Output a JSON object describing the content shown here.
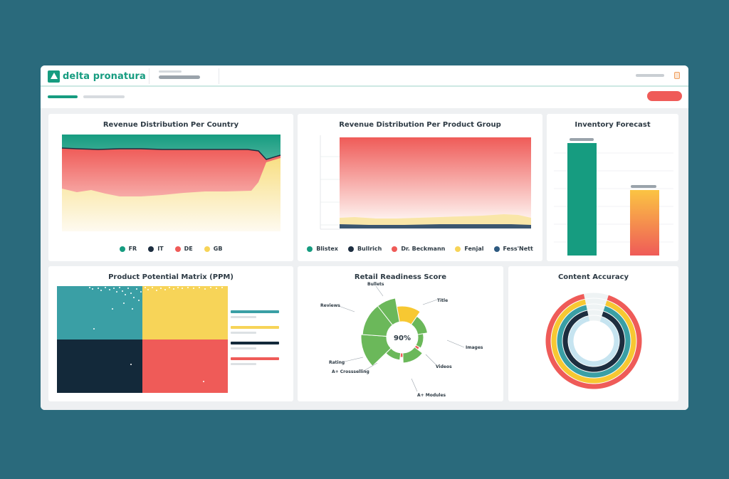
{
  "app": {
    "logo_text": "delta pronatura"
  },
  "colors": {
    "brand": "#169c80",
    "teal": "#3a9fa5",
    "navy": "#1d2e40",
    "red": "#ef5b58",
    "yellow": "#f7d458",
    "green": "#6bb85a",
    "action": "#ef5b58"
  },
  "panels": {
    "country": {
      "title": "Revenue Distribution Per Country",
      "legend": [
        {
          "label": "FR",
          "color": "#169c80"
        },
        {
          "label": "IT",
          "color": "#1d2e40"
        },
        {
          "label": "DE",
          "color": "#ef5b58"
        },
        {
          "label": "GB",
          "color": "#f7d458"
        }
      ]
    },
    "product_group": {
      "title": "Revenue Distribution Per Product Group",
      "legend": [
        {
          "label": "Blistex",
          "color": "#169c80"
        },
        {
          "label": "Bullrich",
          "color": "#1d2e40"
        },
        {
          "label": "Dr. Beckmann",
          "color": "#ef5b58"
        },
        {
          "label": "Fenjal",
          "color": "#f7d458"
        },
        {
          "label": "Fess'Nett",
          "color": "#2e5a80"
        }
      ]
    },
    "inventory": {
      "title": "Inventory Forecast"
    },
    "ppm": {
      "title": "Product Potential Matrix (PPM)"
    },
    "readiness": {
      "title": "Retail Readiness Score",
      "center_value": "90%",
      "labels": {
        "bullets": "Bullets",
        "title": "Title",
        "reviews": "Reviews",
        "images": "Images",
        "rating": "Rating",
        "videos": "Videos",
        "crossselling": "A+ Crossselling",
        "modules": "A+ Modules"
      }
    },
    "accuracy": {
      "title": "Content Accuracy"
    }
  }
}
